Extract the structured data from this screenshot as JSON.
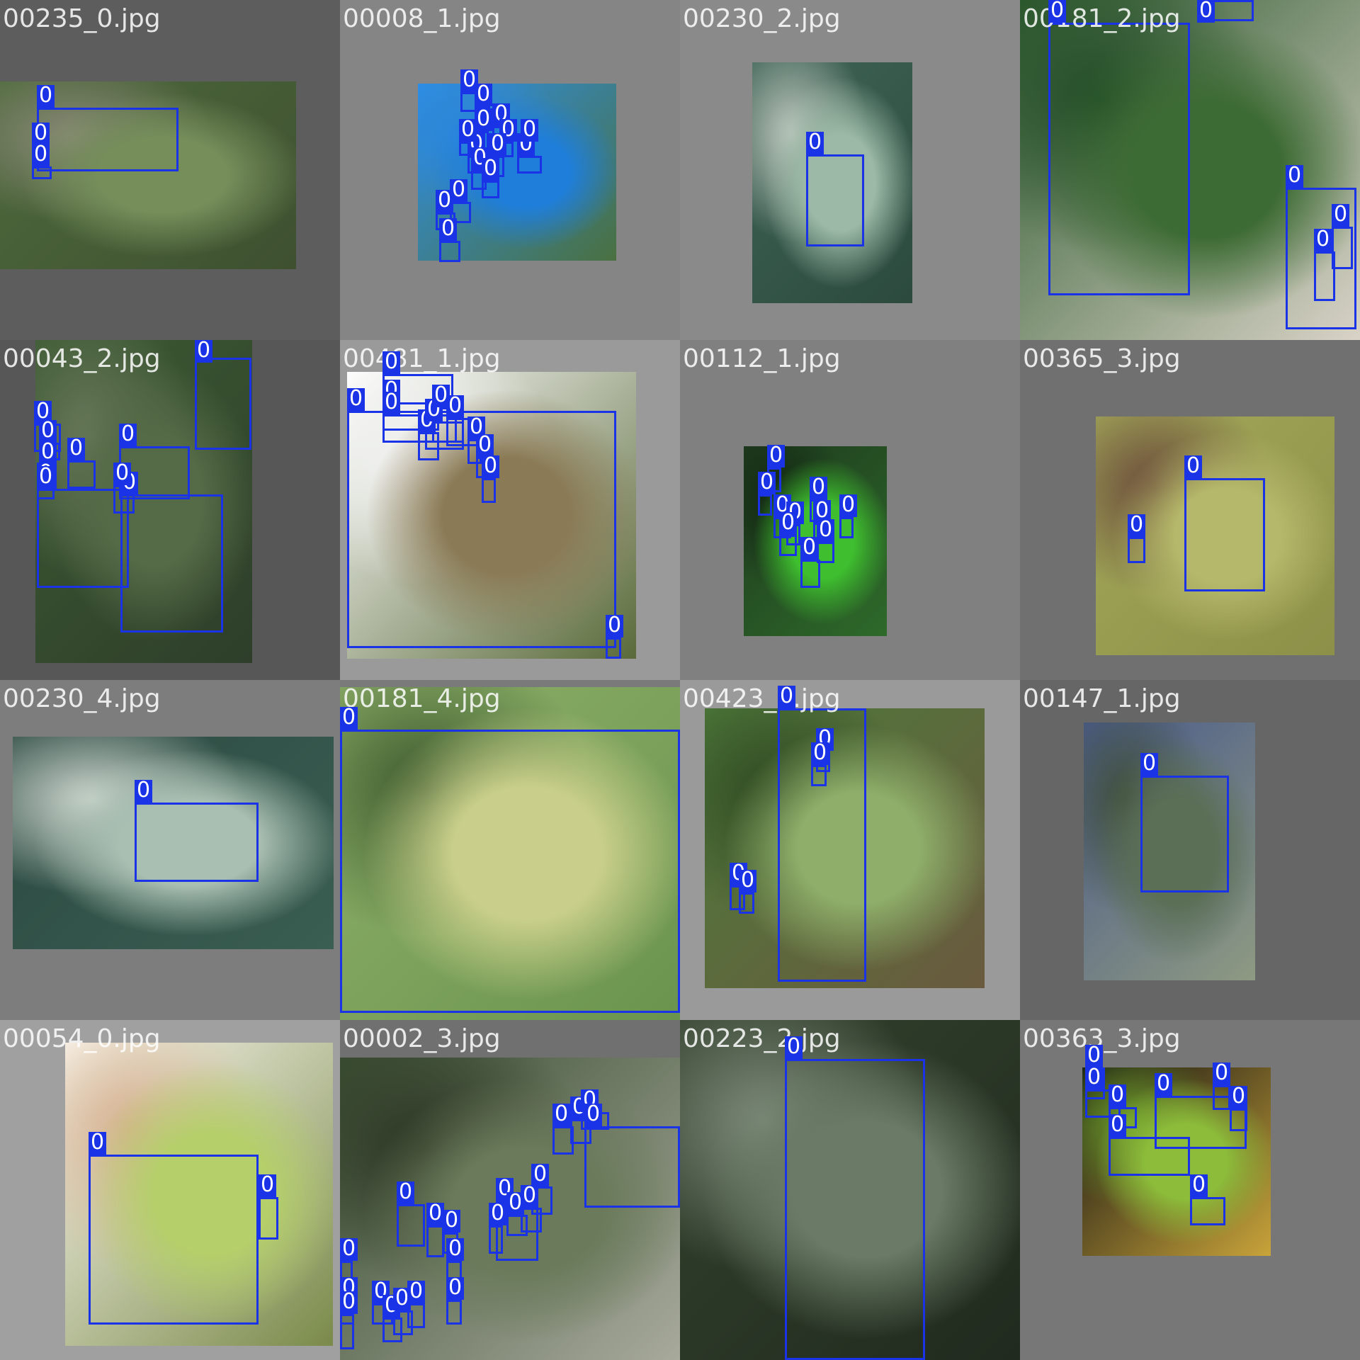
{
  "mosaic": {
    "tiles": [
      {
        "filename": "00235_0.jpg",
        "background": "#5d5d5d",
        "photo_colors": [
          "#4e6a3c",
          "#758e5a",
          "#3e5030",
          "#8a8a78"
        ],
        "detections": 3
      },
      {
        "filename": "00008_1.jpg",
        "background": "#858585",
        "photo_colors": [
          "#2e8fe6",
          "#1f7ed9",
          "#4a7040",
          "#2a86df"
        ],
        "detections": 15
      },
      {
        "filename": "00230_2.jpg",
        "background": "#8a8a8a",
        "photo_colors": [
          "#3e6455",
          "#9bb9a6",
          "#2c4a3e",
          "#c0c8c0"
        ],
        "detections": 1
      },
      {
        "filename": "00181_2.jpg",
        "background": "#7a7a7a",
        "photo_colors": [
          "#2e5a2e",
          "#3d6b34",
          "#d9d3c7",
          "#1f4a25"
        ],
        "detections": 5
      },
      {
        "filename": "00043_2.jpg",
        "background": "#575757",
        "photo_colors": [
          "#3c5a32",
          "#556b47",
          "#2e3e2a",
          "#6a7a5c"
        ],
        "detections": 10
      },
      {
        "filename": "00481_1.jpg",
        "background": "#9a9a9a",
        "photo_colors": [
          "#ffffff",
          "#8a7a55",
          "#5a6a3a",
          "#f5f5f5"
        ],
        "detections": 12
      },
      {
        "filename": "00112_1.jpg",
        "background": "#808080",
        "photo_colors": [
          "#1e3a1e",
          "#3fbf2f",
          "#2e6a2a",
          "#122612"
        ],
        "detections": 10
      },
      {
        "filename": "00365_3.jpg",
        "background": "#707070",
        "photo_colors": [
          "#a3a85a",
          "#b5b86a",
          "#8c9048",
          "#6a4a3a"
        ],
        "detections": 2
      },
      {
        "filename": "00230_4.jpg",
        "background": "#7d7d7d",
        "photo_colors": [
          "#2c4a42",
          "#a9bfb2",
          "#3a5e52",
          "#d0d8d0"
        ],
        "detections": 1
      },
      {
        "filename": "00181_4.jpg",
        "background": "#7a7a7a",
        "photo_colors": [
          "#8fb06a",
          "#c9cf8a",
          "#6a944e",
          "#3d5a2e"
        ],
        "detections": 1
      },
      {
        "filename": "00423_3.jpg",
        "background": "#9a9a9a",
        "photo_colors": [
          "#4d7a3a",
          "#8fae6a",
          "#6a5a3e",
          "#2e4a22"
        ],
        "detections": 5
      },
      {
        "filename": "00147_1.jpg",
        "background": "#666666",
        "photo_colors": [
          "#4a5a8a",
          "#5a6f55",
          "#8e9a82",
          "#3e4e3a"
        ],
        "detections": 1
      },
      {
        "filename": "00054_0.jpg",
        "background": "#a0a0a0",
        "photo_colors": [
          "#fbf8f0",
          "#b5cf6a",
          "#7a8a4a",
          "#d8b090"
        ],
        "detections": 2
      },
      {
        "filename": "00002_3.jpg",
        "background": "#707070",
        "photo_colors": [
          "#3a4e32",
          "#6a7a5a",
          "#a8aa9c",
          "#2a3422"
        ],
        "detections": 21
      },
      {
        "filename": "00223_2.jpg",
        "background": "#5a5a5a",
        "photo_colors": [
          "#34422e",
          "#6a7a66",
          "#202a1e",
          "#7f8c7c"
        ],
        "detections": 1
      },
      {
        "filename": "00363_3.jpg",
        "background": "#777777",
        "photo_colors": [
          "#111111",
          "#8cbc3a",
          "#c9a43a",
          "#6a9a2a"
        ],
        "detections": 8
      }
    ],
    "class_label": "0",
    "box_color": "#1a33e6"
  }
}
